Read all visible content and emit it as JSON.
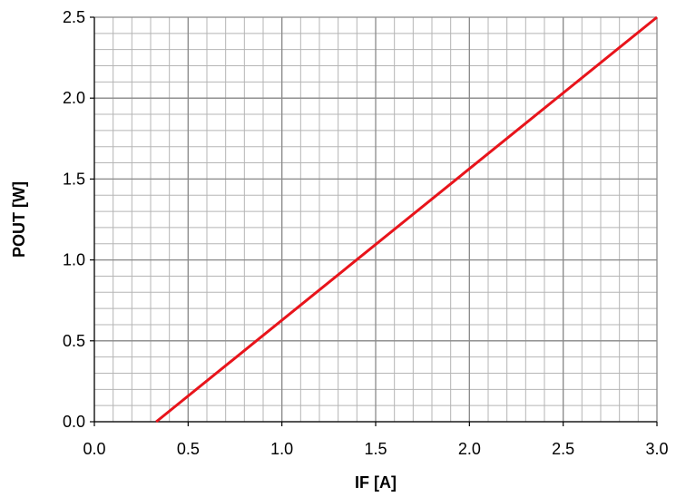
{
  "chart_data": {
    "type": "line",
    "title": "",
    "xlabel": "IF [A]",
    "ylabel": "POUT [W]",
    "xlim": [
      0.0,
      3.0
    ],
    "ylim": [
      0.0,
      2.5
    ],
    "x_ticks": [
      "0.0",
      "0.5",
      "1.0",
      "1.5",
      "2.0",
      "2.5",
      "3.0"
    ],
    "y_ticks": [
      "0.0",
      "0.5",
      "1.0",
      "1.5",
      "2.0",
      "2.5"
    ],
    "x_tick_values": [
      0.0,
      0.5,
      1.0,
      1.5,
      2.0,
      2.5,
      3.0
    ],
    "y_tick_values": [
      0.0,
      0.5,
      1.0,
      1.5,
      2.0,
      2.5
    ],
    "minor_grid_x_step": 0.1,
    "minor_grid_y_step": 0.1,
    "grid": true,
    "legend": "none",
    "series": [
      {
        "color": "#e8141b",
        "x": [
          0.33,
          3.0
        ],
        "y": [
          0.0,
          2.5
        ]
      }
    ]
  },
  "colors": {
    "major_grid": "#8a8a8a",
    "minor_grid": "#b5b5b5",
    "axis": "#000000"
  }
}
